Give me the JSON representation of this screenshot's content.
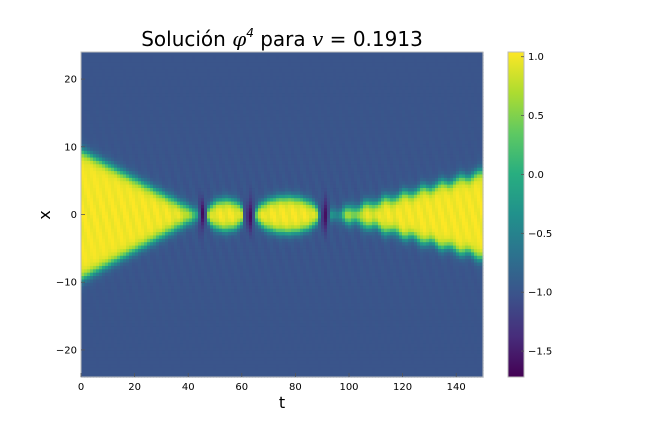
{
  "chart_data": {
    "type": "heatmap",
    "title": {
      "prefix": "Solución ",
      "phi": "φ",
      "exponent": "4",
      "middle": " para ",
      "var": "v",
      "eq": " = ",
      "value": "0.1913"
    },
    "xlabel": "t",
    "ylabel": "x",
    "xlim": [
      0,
      150
    ],
    "ylim": [
      -24,
      24
    ],
    "xticks": [
      0,
      20,
      40,
      60,
      80,
      100,
      120,
      140
    ],
    "yticks": [
      -20,
      -10,
      0,
      10,
      20
    ],
    "colorbar": {
      "colormap": "viridis",
      "range": [
        -1.72,
        1.04
      ],
      "ticks": [
        1.0,
        0.5,
        0.0,
        -0.5,
        -1.0,
        -1.5
      ],
      "tick_labels": [
        "1.0",
        "0.5",
        "0.0",
        "−0.5",
        "−1.0",
        "−1.5"
      ]
    },
    "field": {
      "background_value": -1.0,
      "kink_value": 1.0,
      "initial_half_width": 9.5,
      "first_collision_t": 45,
      "bounces": [
        {
          "t_start": 47,
          "t_end": 61,
          "half_width": 2.2,
          "peak": 1.0
        },
        {
          "t_start": 65,
          "t_end": 89,
          "half_width": 2.6,
          "peak": 1.0
        }
      ],
      "final_separation_start_t": 93,
      "final_half_width_at_tmax": 6.3,
      "dip_times": [
        45,
        63,
        91
      ],
      "dip_min": -1.72
    }
  }
}
